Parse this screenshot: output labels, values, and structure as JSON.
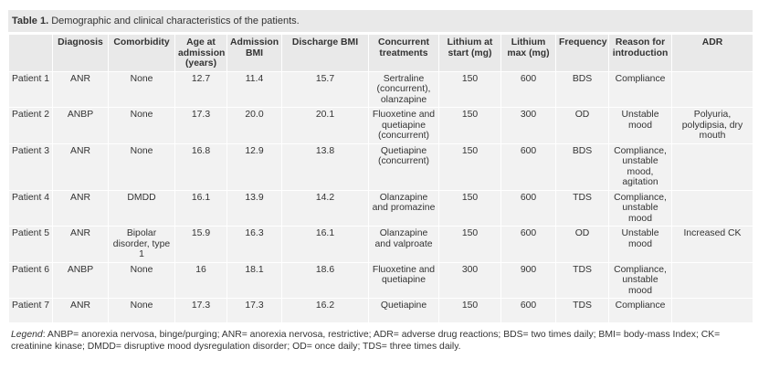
{
  "caption": {
    "label": "Table 1.",
    "text": "Demographic and clinical characteristics of the patients."
  },
  "columns": [
    "",
    "Diagnosis",
    "Comorbidity",
    "Age at admission (years)",
    "Admission BMI",
    "Discharge BMI",
    "Concurrent treatments",
    "Lithium at start (mg)",
    "Lithium max (mg)",
    "Frequency",
    "Reason for introduction",
    "ADR"
  ],
  "rows": [
    [
      "Patient 1",
      "ANR",
      "None",
      "12.7",
      "11.4",
      "15.7",
      "Sertraline (concurrent), olanzapine",
      "150",
      "600",
      "BDS",
      "Compliance",
      ""
    ],
    [
      "Patient 2",
      "ANBP",
      "None",
      "17.3",
      "20.0",
      "20.1",
      "Fluoxetine and quetiapine (concurrent)",
      "150",
      "300",
      "OD",
      "Unstable mood",
      "Polyuria, polydipsia, dry mouth"
    ],
    [
      "Patient 3",
      "ANR",
      "None",
      "16.8",
      "12.9",
      "13.8",
      "Quetiapine (concurrent)",
      "150",
      "600",
      "BDS",
      "Compliance, unstable mood, agitation",
      ""
    ],
    [
      "Patient 4",
      "ANR",
      "DMDD",
      "16.1",
      "13.9",
      "14.2",
      "Olanzapine and promazine",
      "150",
      "600",
      "TDS",
      "Compliance, unstable mood",
      ""
    ],
    [
      "Patient 5",
      "ANR",
      "Bipolar disorder, type 1",
      "15.9",
      "16.3",
      "16.1",
      "Olanzapine and valproate",
      "150",
      "600",
      "OD",
      "Unstable mood",
      "Increased CK"
    ],
    [
      "Patient 6",
      "ANBP",
      "None",
      "16",
      "18.1",
      "18.6",
      "Fluoxetine and quetiapine",
      "300",
      "900",
      "TDS",
      "Compliance, unstable mood",
      ""
    ],
    [
      "Patient 7",
      "ANR",
      "None",
      "17.3",
      "17.3",
      "16.2",
      "Quetiapine",
      "150",
      "600",
      "TDS",
      "Compliance",
      ""
    ]
  ],
  "legend": {
    "label": "Legend",
    "text": ": ANBP= anorexia nervosa, binge/purging; ANR= anorexia nervosa, restrictive; ADR= adverse drug reactions; BDS= two times daily; BMI= body-mass Index; CK= creatinine kinase; DMDD= disruptive mood dysregulation disorder; OD= once daily; TDS= three times daily."
  }
}
